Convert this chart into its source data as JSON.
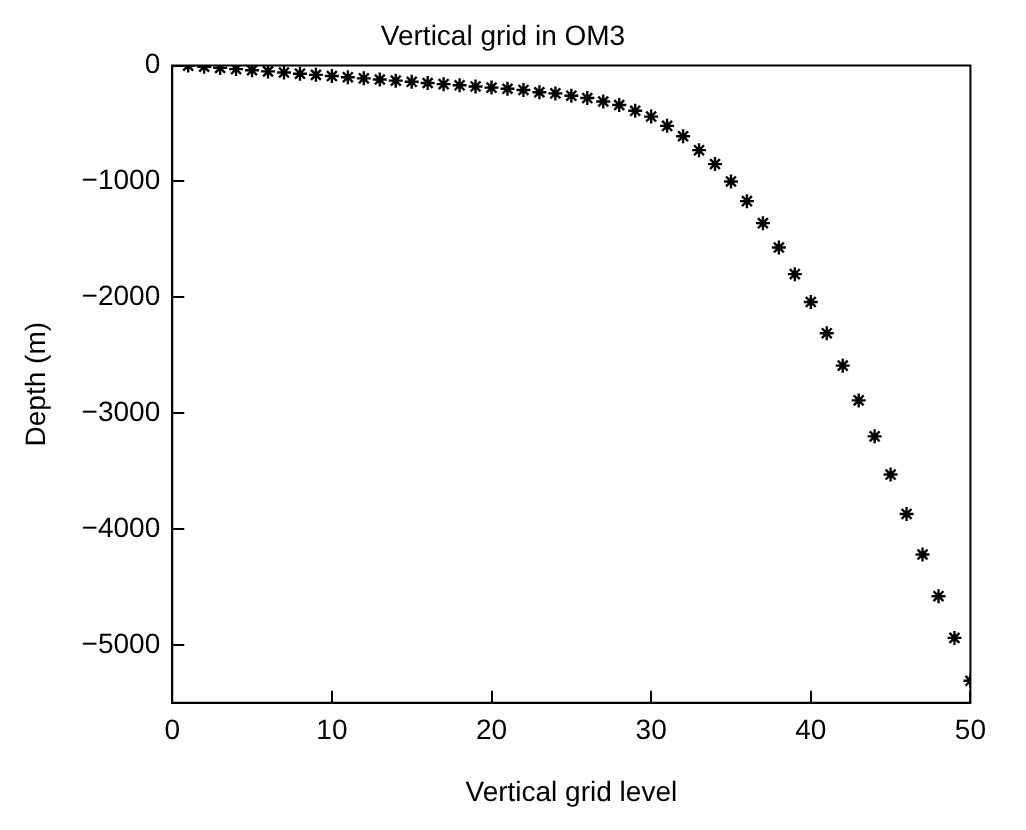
{
  "chart_data": {
    "type": "scatter",
    "title": "Vertical grid in OM3",
    "xlabel": "Vertical grid level",
    "ylabel": "Depth (m)",
    "x": [
      1,
      2,
      3,
      4,
      5,
      6,
      7,
      8,
      9,
      10,
      11,
      12,
      13,
      14,
      15,
      16,
      17,
      18,
      19,
      20,
      21,
      22,
      23,
      24,
      25,
      26,
      27,
      28,
      29,
      30,
      31,
      32,
      33,
      34,
      35,
      36,
      37,
      38,
      39,
      40,
      41,
      42,
      43,
      44,
      45,
      46,
      47,
      48,
      49,
      50
    ],
    "series": [
      {
        "color": "#000000",
        "values": [
          0,
          -10,
          -20,
          -30,
          -40,
          -50,
          -60,
          -70,
          -80,
          -90,
          -100,
          -110,
          -120,
          -130,
          -140,
          -150,
          -160,
          -170,
          -180,
          -190,
          -200,
          -210,
          -230,
          -240,
          -260,
          -280,
          -310,
          -340,
          -390,
          -440,
          -520,
          -610,
          -730,
          -850,
          -1000,
          -1170,
          -1360,
          -1570,
          -1800,
          -2040,
          -2310,
          -2590,
          -2890,
          -3200,
          -3530,
          -3870,
          -4220,
          -4580,
          -4940,
          -5310
        ]
      }
    ],
    "xlim": [
      0,
      50
    ],
    "xticks": [
      0,
      10,
      20,
      30,
      40,
      50
    ],
    "ylim": [
      -5500,
      0
    ],
    "yticks": [
      -5000,
      -4000,
      -3000,
      -2000,
      -1000,
      0
    ],
    "marker": "cross",
    "grid": false,
    "legend": false
  }
}
